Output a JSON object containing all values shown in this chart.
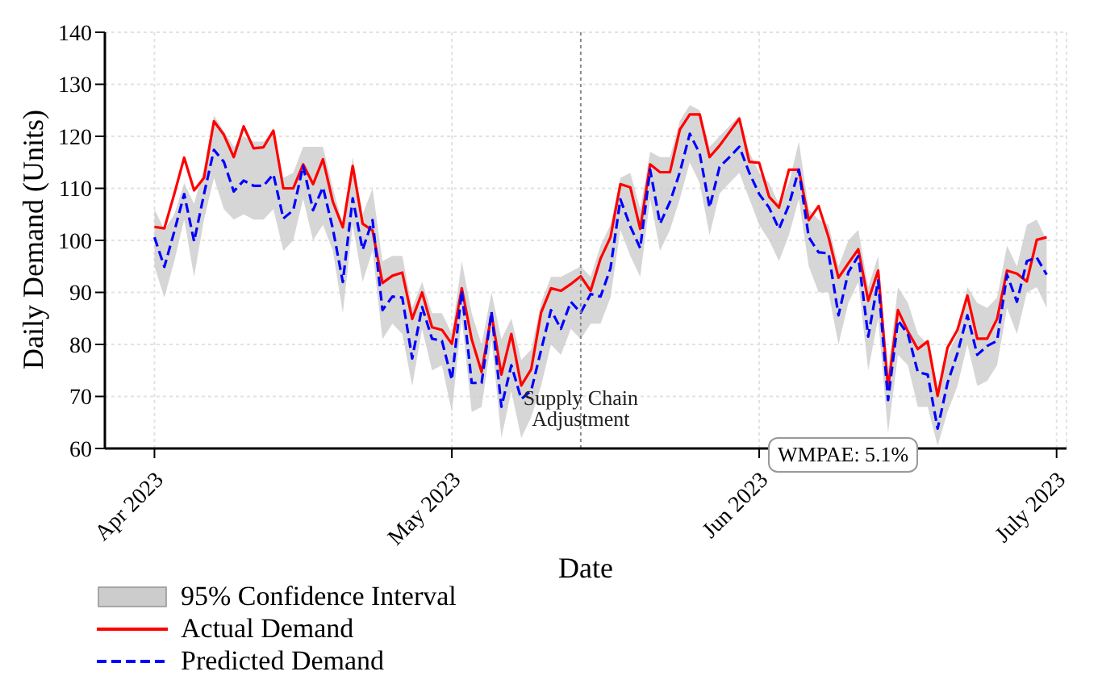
{
  "chart_data": {
    "type": "line",
    "xlabel": "Date",
    "ylabel": "Daily Demand (Units)",
    "x": [
      "2023-04-01",
      "2023-04-02",
      "2023-04-03",
      "2023-04-04",
      "2023-04-05",
      "2023-04-06",
      "2023-04-07",
      "2023-04-08",
      "2023-04-09",
      "2023-04-10",
      "2023-04-11",
      "2023-04-12",
      "2023-04-13",
      "2023-04-14",
      "2023-04-15",
      "2023-04-16",
      "2023-04-17",
      "2023-04-18",
      "2023-04-19",
      "2023-04-20",
      "2023-04-21",
      "2023-04-22",
      "2023-04-23",
      "2023-04-24",
      "2023-04-25",
      "2023-04-26",
      "2023-04-27",
      "2023-04-28",
      "2023-04-29",
      "2023-04-30",
      "2023-05-01",
      "2023-05-02",
      "2023-05-03",
      "2023-05-04",
      "2023-05-05",
      "2023-05-06",
      "2023-05-07",
      "2023-05-08",
      "2023-05-09",
      "2023-05-10",
      "2023-05-11",
      "2023-05-12",
      "2023-05-13",
      "2023-05-14",
      "2023-05-15",
      "2023-05-16",
      "2023-05-17",
      "2023-05-18",
      "2023-05-19",
      "2023-05-20",
      "2023-05-21",
      "2023-05-22",
      "2023-05-23",
      "2023-05-24",
      "2023-05-25",
      "2023-05-26",
      "2023-05-27",
      "2023-05-28",
      "2023-05-29",
      "2023-05-30",
      "2023-05-31",
      "2023-06-01",
      "2023-06-02",
      "2023-06-03",
      "2023-06-04",
      "2023-06-05",
      "2023-06-06",
      "2023-06-07",
      "2023-06-08",
      "2023-06-09",
      "2023-06-10",
      "2023-06-11",
      "2023-06-12",
      "2023-06-13",
      "2023-06-14",
      "2023-06-15",
      "2023-06-16",
      "2023-06-17",
      "2023-06-18",
      "2023-06-19",
      "2023-06-20",
      "2023-06-21",
      "2023-06-22",
      "2023-06-23",
      "2023-06-24",
      "2023-06-25",
      "2023-06-26",
      "2023-06-27",
      "2023-06-28",
      "2023-06-29",
      "2023-06-30"
    ],
    "series": [
      {
        "name": "95% Confidence Interval",
        "type": "area",
        "color": "#cccccc",
        "values": [
          null,
          null,
          null,
          null,
          null,
          null,
          null,
          null,
          null,
          null,
          null,
          null,
          null,
          null,
          null,
          null,
          null,
          null,
          null,
          null,
          null,
          null,
          null,
          null,
          null,
          null,
          null,
          null,
          null,
          null,
          null,
          null,
          null,
          null,
          null,
          null,
          null,
          null,
          null,
          null,
          null,
          null,
          null,
          null,
          null,
          null,
          null,
          null,
          null,
          null,
          null,
          null,
          null,
          null,
          null,
          null,
          null,
          null,
          null,
          null,
          null,
          null,
          null,
          null,
          null,
          null,
          null,
          null,
          null,
          null,
          null,
          null,
          null,
          null,
          null,
          null,
          null,
          null,
          null,
          null,
          null,
          null,
          null,
          null,
          null,
          null,
          null,
          null,
          null,
          null,
          null
        ],
        "lower": [
          95,
          89,
          96,
          104,
          93,
          104,
          112,
          106,
          104,
          105,
          104,
          104,
          106,
          98,
          100,
          108,
          100,
          103,
          98,
          86,
          103,
          92,
          98,
          81,
          84,
          82,
          72,
          83,
          75,
          76,
          67,
          85,
          67,
          68,
          81,
          62,
          71,
          62,
          66,
          72,
          80,
          78,
          83,
          81,
          84,
          84,
          89,
          102,
          97,
          93,
          108,
          98,
          102,
          108,
          115,
          111,
          101,
          109,
          111,
          113,
          108,
          103,
          100,
          96,
          101,
          108,
          95,
          90,
          90,
          80,
          88,
          92,
          75,
          85,
          63,
          78,
          76,
          68,
          68,
          60.5,
          67,
          72,
          80,
          72,
          73,
          76,
          87,
          82,
          90,
          91,
          87
        ],
        "upper": [
          106,
          102,
          105,
          111,
          107,
          114,
          124,
          121,
          118,
          120,
          119,
          119,
          121,
          112,
          113,
          118,
          118,
          118,
          110,
          103,
          116,
          105,
          110,
          96,
          97,
          97,
          87,
          92,
          86,
          86,
          82,
          96,
          86,
          80,
          90,
          81,
          85,
          77,
          79,
          88,
          93,
          93,
          94,
          95,
          93,
          99,
          103,
          112,
          113,
          106,
          117,
          116,
          116,
          123,
          126,
          125,
          118,
          120,
          122,
          124,
          117,
          113,
          111,
          107,
          111,
          119,
          106,
          104,
          103,
          95,
          100,
          102,
          91,
          97,
          75,
          91,
          88,
          82,
          80,
          70,
          78,
          82,
          91,
          88,
          87,
          89,
          99,
          95,
          103,
          104,
          100
        ]
      },
      {
        "name": "Actual Demand",
        "color": "#ff0000",
        "line_style": "solid",
        "values": [
          102.6,
          102.3,
          108.9,
          115.9,
          109.6,
          112,
          122.9,
          120.3,
          116,
          121.9,
          117.7,
          117.9,
          121.1,
          110,
          110,
          114.6,
          110.8,
          115.6,
          107.4,
          102.5,
          114.3,
          103.2,
          101.9,
          91.8,
          93.2,
          93.8,
          84.9,
          90,
          83.3,
          82.8,
          80.1,
          90.8,
          81,
          74.7,
          85.8,
          74.2,
          82,
          72.1,
          75.2,
          86.1,
          90.8,
          90.3,
          91.6,
          93.1,
          90.3,
          96.5,
          100.6,
          110.8,
          110.2,
          102.2,
          114.6,
          113.1,
          113.1,
          121.3,
          124.2,
          124.2,
          116,
          118.2,
          120.8,
          123.4,
          115.1,
          114.9,
          108.4,
          106.3,
          113.6,
          113.6,
          103.9,
          106.6,
          100.6,
          92.8,
          95.6,
          98.3,
          88.4,
          94.2,
          71.6,
          86.6,
          82.5,
          79.1,
          80.6,
          70.1,
          79.4,
          82.8,
          89.4,
          81.1,
          81.1,
          84.9,
          94.2,
          93.6,
          92.1,
          100.1,
          100.6
        ]
      },
      {
        "name": "Predicted Demand",
        "color": "#0000ff",
        "line_style": "dashed",
        "values": [
          100.6,
          94.9,
          101.7,
          108.9,
          99.8,
          108.9,
          117.4,
          115.1,
          109.4,
          111.5,
          110.5,
          110.5,
          112.7,
          104.2,
          105.8,
          114.3,
          105.8,
          110.2,
          102.2,
          92,
          108.1,
          98.2,
          103.9,
          86.6,
          89.2,
          89,
          77.3,
          87.2,
          81.1,
          80.7,
          73.2,
          90.3,
          72.6,
          72.6,
          86.3,
          68,
          76,
          69.5,
          71.1,
          78.9,
          86.6,
          83,
          88.2,
          86.1,
          89.7,
          89.2,
          94.6,
          107.9,
          102.7,
          98.5,
          113.6,
          103.2,
          107.4,
          113.1,
          120.5,
          116.7,
          106.3,
          114.1,
          116,
          118,
          113,
          108.9,
          106.3,
          102.2,
          106.8,
          113.6,
          100.6,
          97.7,
          97.5,
          85.6,
          93.9,
          97,
          81.5,
          92.3,
          69.3,
          84.6,
          82,
          74.7,
          74.2,
          63.8,
          72.6,
          78.3,
          85.6,
          78,
          79.7,
          80.7,
          93.4,
          88.2,
          96,
          96.7,
          93.4
        ]
      }
    ],
    "xlim": [
      "2023-03-27",
      "2023-07-02"
    ],
    "xticks": [
      {
        "value": "2023-04-01",
        "label": "Apr 2023"
      },
      {
        "value": "2023-05-01",
        "label": "May 2023"
      },
      {
        "value": "2023-06-01",
        "label": "Jun 2023"
      },
      {
        "value": "2023-07-01",
        "label": "July 2023"
      }
    ],
    "ylim": [
      60,
      140
    ],
    "yticks": [
      60,
      70,
      80,
      90,
      100,
      110,
      120,
      130,
      140
    ],
    "ref_lines": [
      {
        "axis": "x",
        "value": "2023-05-14",
        "label": "Supply Chain Adjustment",
        "color": "#888888",
        "line_style": "dotted"
      }
    ],
    "annotations": [
      "WMPAE: 5.1%"
    ],
    "grid": true,
    "legend": "bottom left"
  }
}
